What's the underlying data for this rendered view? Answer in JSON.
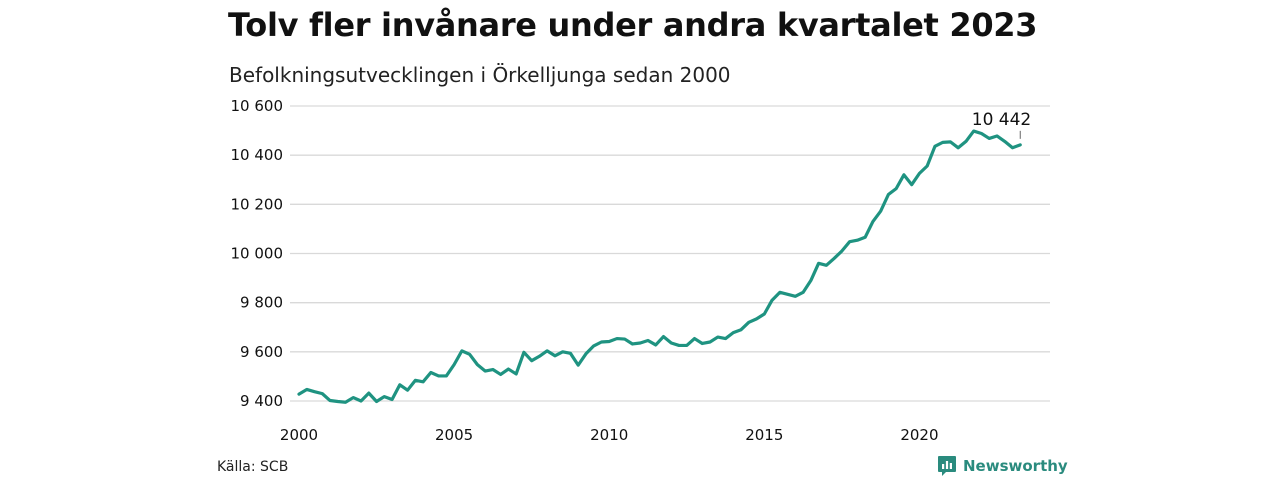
{
  "header": {
    "title": "Tolv fler invånare under andra kvartalet 2023",
    "subtitle": "Befolkningsutvecklingen i Örkelljunga sedan 2000"
  },
  "footer": {
    "source": "Källa: SCB",
    "brand": "Newsworthy",
    "brand_icon": "newsworthy-logo-icon"
  },
  "colors": {
    "line": "#1f9381",
    "grid": "#d9d9d9",
    "brand": "#2a8b7e"
  },
  "chart_data": {
    "type": "line",
    "title": "",
    "xlabel": "",
    "ylabel": "",
    "xlim": [
      2000,
      2023.5
    ],
    "ylim": [
      9400,
      10600
    ],
    "grid": "horizontal",
    "y_ticks": [
      {
        "value": 9400,
        "label": "9 400"
      },
      {
        "value": 9600,
        "label": "9 600"
      },
      {
        "value": 9800,
        "label": "9 800"
      },
      {
        "value": 10000,
        "label": "10 000"
      },
      {
        "value": 10200,
        "label": "10 200"
      },
      {
        "value": 10400,
        "label": "10 400"
      },
      {
        "value": 10600,
        "label": "10 600"
      }
    ],
    "x_ticks": [
      {
        "value": 2000,
        "label": "2000"
      },
      {
        "value": 2005,
        "label": "2005"
      },
      {
        "value": 2010,
        "label": "2010"
      },
      {
        "value": 2015,
        "label": "2015"
      },
      {
        "value": 2020,
        "label": "2020"
      }
    ],
    "annotation": {
      "x": 2023.25,
      "y": 10442,
      "label": "10 442"
    },
    "series": [
      {
        "x": [
          2000.0,
          2000.25,
          2000.5,
          2000.75,
          2001.0,
          2001.25,
          2001.5,
          2001.75,
          2002.0,
          2002.25,
          2002.5,
          2002.75,
          2003.0,
          2003.25,
          2003.5,
          2003.75,
          2004.0,
          2004.25,
          2004.5,
          2004.75,
          2005.0,
          2005.25,
          2005.5,
          2005.75,
          2006.0,
          2006.25,
          2006.5,
          2006.75,
          2007.0,
          2007.25,
          2007.5,
          2007.75,
          2008.0,
          2008.25,
          2008.5,
          2008.75,
          2009.0,
          2009.25,
          2009.5,
          2009.75,
          2010.0,
          2010.25,
          2010.5,
          2010.75,
          2011.0,
          2011.25,
          2011.5,
          2011.75,
          2012.0,
          2012.25,
          2012.5,
          2012.75,
          2013.0,
          2013.25,
          2013.5,
          2013.75,
          2014.0,
          2014.25,
          2014.5,
          2014.75,
          2015.0,
          2015.25,
          2015.5,
          2015.75,
          2016.0,
          2016.25,
          2016.5,
          2016.75,
          2017.0,
          2017.25,
          2017.5,
          2017.75,
          2018.0,
          2018.25,
          2018.5,
          2018.75,
          2019.0,
          2019.25,
          2019.5,
          2019.75,
          2020.0,
          2020.25,
          2020.5,
          2020.75,
          2021.0,
          2021.25,
          2021.5,
          2021.75,
          2022.0,
          2022.25,
          2022.5,
          2022.75,
          2023.0,
          2023.25
        ],
        "values": [
          9428,
          9447,
          9438,
          9430,
          9402,
          9398,
          9395,
          9414,
          9400,
          9432,
          9398,
          9418,
          9406,
          9466,
          9444,
          9484,
          9478,
          9516,
          9502,
          9502,
          9548,
          9604,
          9590,
          9548,
          9522,
          9528,
          9508,
          9530,
          9510,
          9598,
          9564,
          9582,
          9604,
          9584,
          9600,
          9594,
          9546,
          9592,
          9624,
          9640,
          9642,
          9654,
          9652,
          9632,
          9636,
          9646,
          9628,
          9662,
          9636,
          9626,
          9626,
          9654,
          9634,
          9640,
          9660,
          9654,
          9678,
          9690,
          9720,
          9734,
          9754,
          9810,
          9842,
          9834,
          9826,
          9842,
          9890,
          9960,
          9952,
          9980,
          10010,
          10048,
          10054,
          10066,
          10130,
          10172,
          10240,
          10264,
          10320,
          10280,
          10326,
          10356,
          10436,
          10452,
          10454,
          10430,
          10456,
          10498,
          10488,
          10468,
          10478,
          10456,
          10430,
          10442
        ]
      }
    ]
  }
}
